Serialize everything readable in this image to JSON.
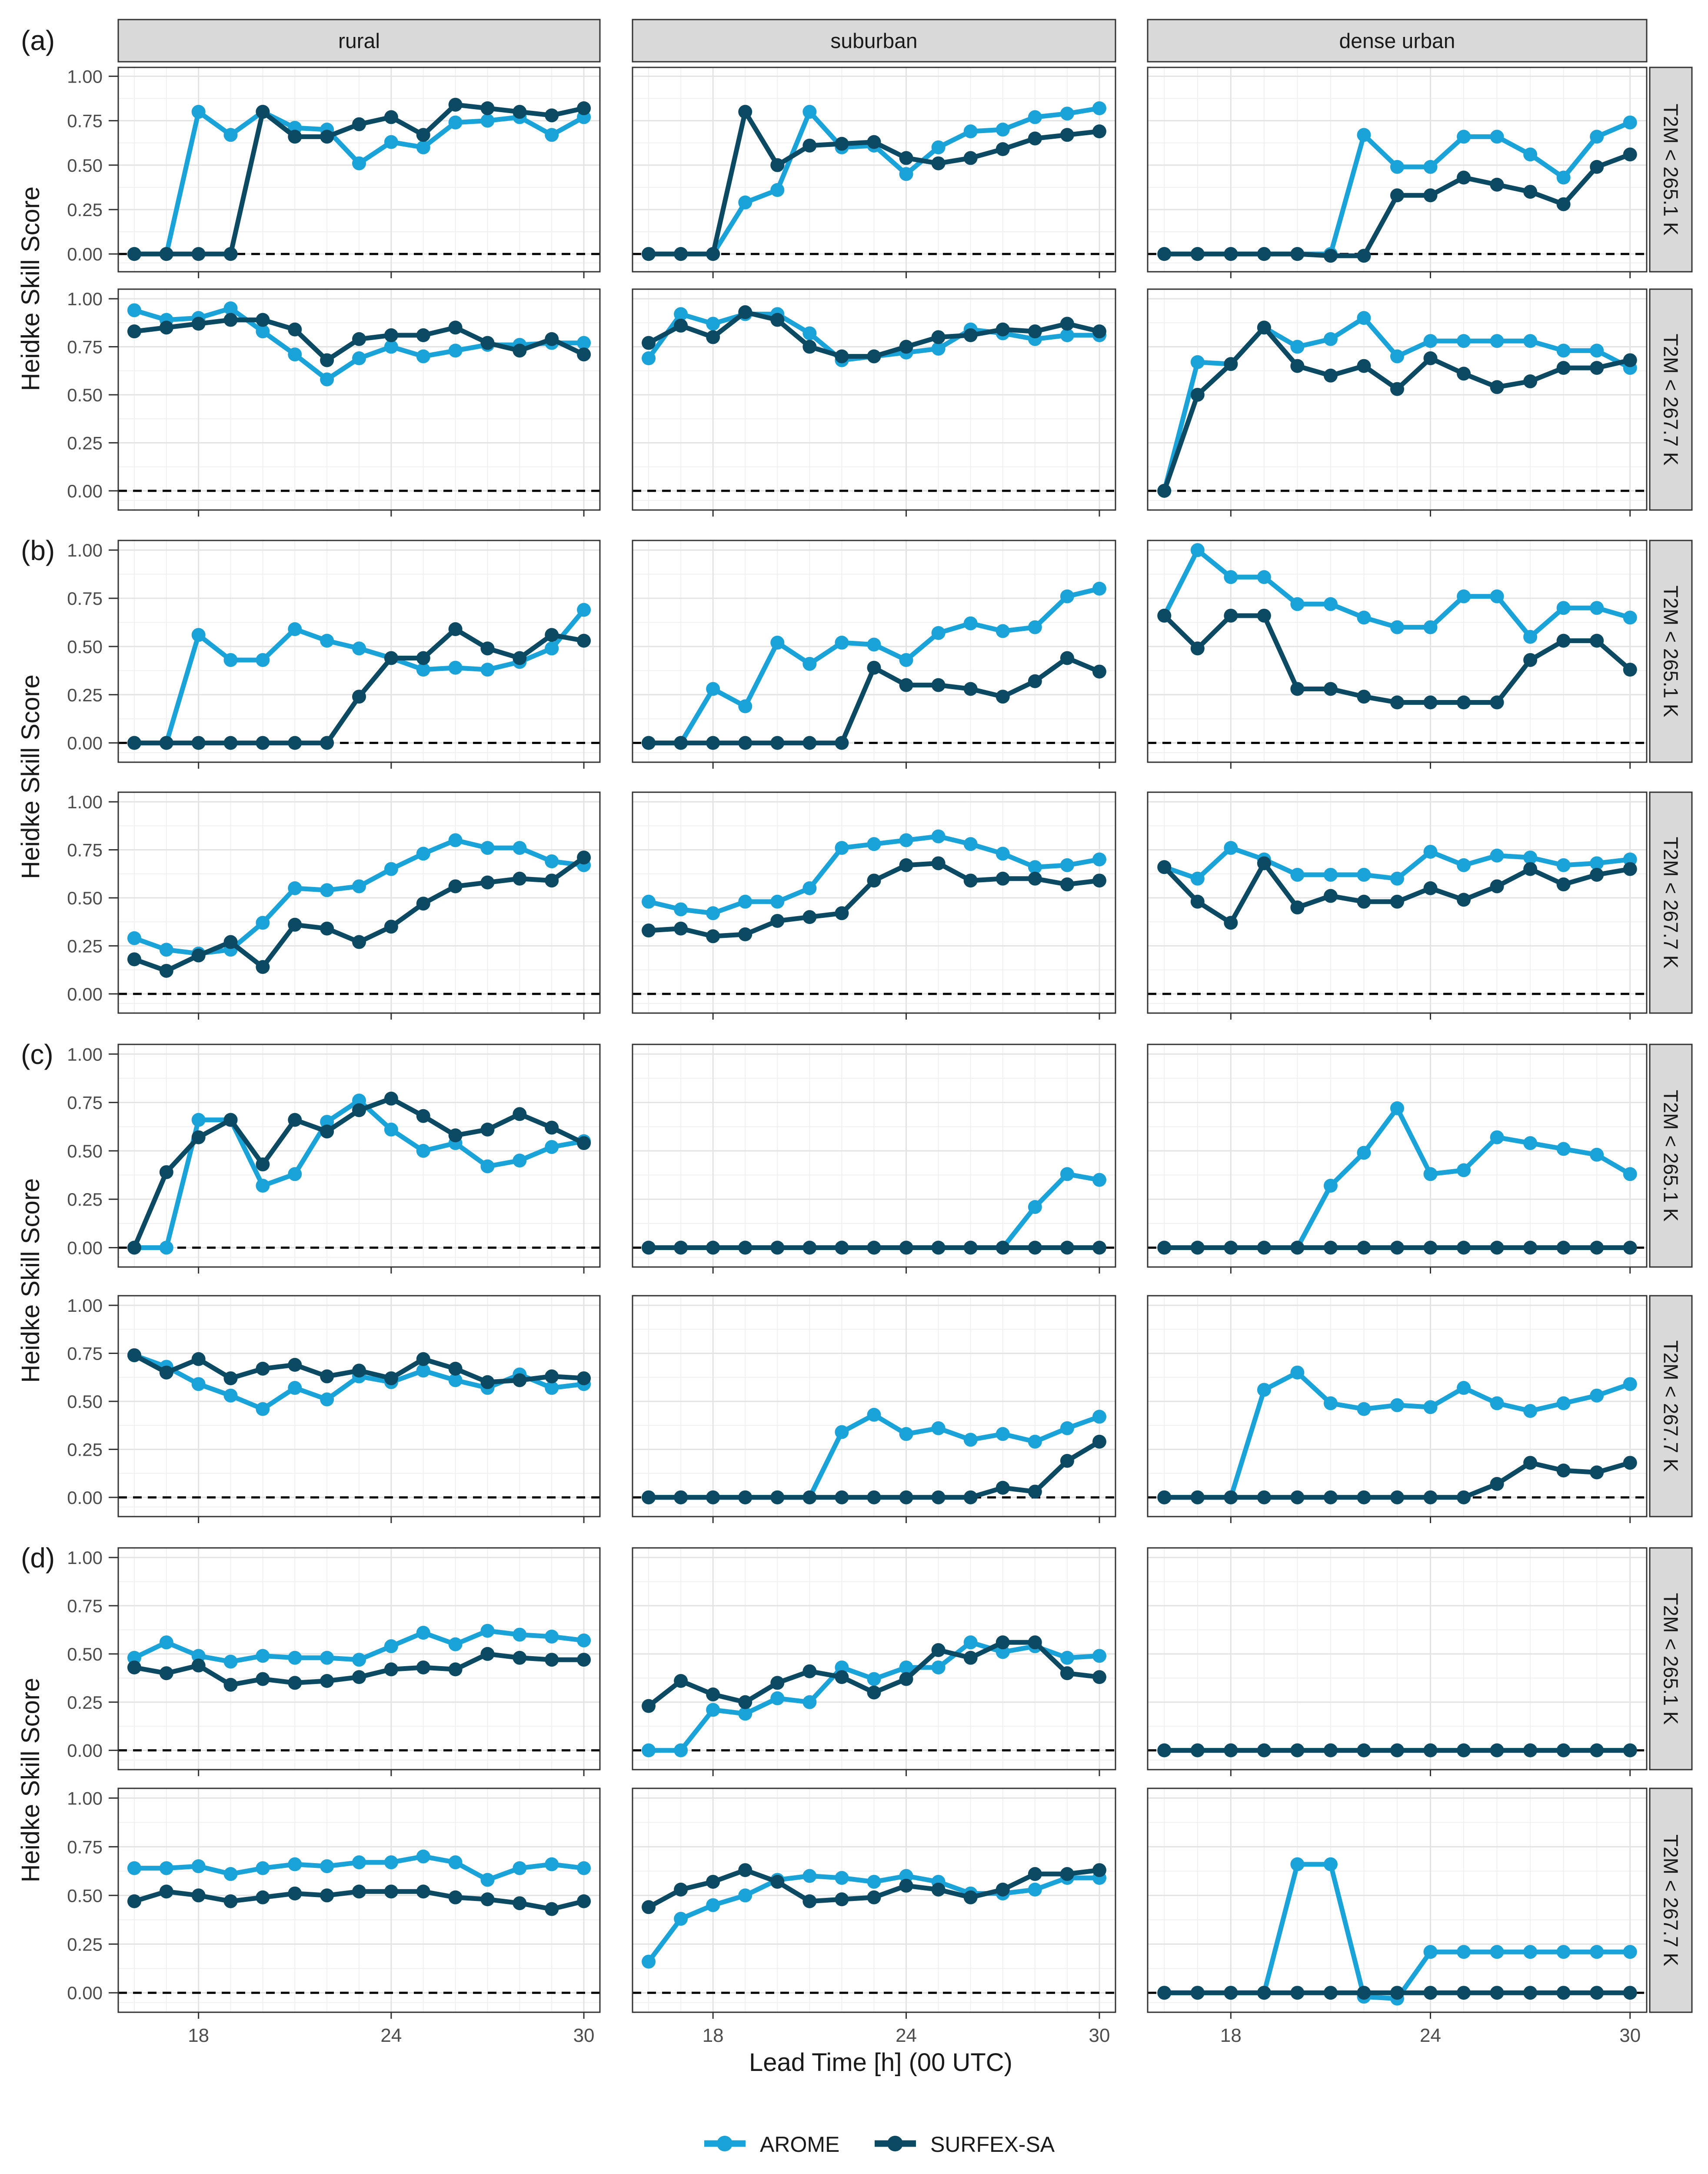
{
  "figure": {
    "ylabel": "Heidke Skill Score",
    "xlabel": "Lead Time [h] (00 UTC)",
    "columns": [
      "rural",
      "suburban",
      "dense urban"
    ],
    "row_strips": [
      "T2M < 265.1 K",
      "T2M < 267.7 K"
    ],
    "group_labels": [
      "(a)",
      "(b)",
      "(c)",
      "(d)"
    ],
    "y_ticks": [
      "0.00",
      "0.25",
      "0.50",
      "0.75",
      "1.00"
    ],
    "x_ticks": [
      "18",
      "24",
      "30"
    ]
  },
  "legend": {
    "items": [
      {
        "name": "AROME",
        "color": "#1aa3d9"
      },
      {
        "name": "SURFEX-SA",
        "color": "#0c4a63"
      }
    ]
  },
  "chart_data": {
    "type": "line",
    "x": [
      16,
      17,
      18,
      19,
      20,
      21,
      22,
      23,
      24,
      25,
      26,
      27,
      28,
      29,
      30
    ],
    "xlim": [
      15.5,
      30.5
    ],
    "ylim": [
      -0.1,
      1.05
    ],
    "y_reference_line": 0,
    "series_names": [
      "AROME",
      "SURFEX-SA"
    ],
    "panels": [
      {
        "group": "(a)",
        "row": "T2M < 265.1 K",
        "column": "rural",
        "AROME": [
          0.0,
          0.0,
          0.8,
          0.67,
          0.8,
          0.71,
          0.7,
          0.51,
          0.63,
          0.6,
          0.74,
          0.75,
          0.77,
          0.67,
          0.77
        ],
        "SURFEX-SA": [
          0.0,
          0.0,
          0.0,
          0.0,
          0.8,
          0.66,
          0.66,
          0.73,
          0.77,
          0.67,
          0.84,
          0.82,
          0.8,
          0.78,
          0.82
        ]
      },
      {
        "group": "(a)",
        "row": "T2M < 265.1 K",
        "column": "suburban",
        "AROME": [
          0.0,
          0.0,
          0.0,
          0.29,
          0.36,
          0.8,
          0.6,
          0.61,
          0.45,
          0.6,
          0.69,
          0.7,
          0.77,
          0.79,
          0.82
        ],
        "SURFEX-SA": [
          0.0,
          0.0,
          0.0,
          0.8,
          0.5,
          0.61,
          0.62,
          0.63,
          0.54,
          0.51,
          0.54,
          0.59,
          0.65,
          0.67,
          0.69
        ]
      },
      {
        "group": "(a)",
        "row": "T2M < 265.1 K",
        "column": "dense urban",
        "AROME": [
          0.0,
          0.0,
          0.0,
          0.0,
          0.0,
          0.0,
          0.67,
          0.49,
          0.49,
          0.66,
          0.66,
          0.56,
          0.43,
          0.66,
          0.74
        ],
        "SURFEX-SA": [
          0.0,
          0.0,
          0.0,
          0.0,
          0.0,
          -0.01,
          -0.01,
          0.33,
          0.33,
          0.43,
          0.39,
          0.35,
          0.28,
          0.49,
          0.56
        ]
      },
      {
        "group": "(a)",
        "row": "T2M < 267.7 K",
        "column": "rural",
        "AROME": [
          0.94,
          0.89,
          0.9,
          0.95,
          0.83,
          0.71,
          0.58,
          0.69,
          0.75,
          0.7,
          0.73,
          0.76,
          0.76,
          0.77,
          0.77
        ],
        "SURFEX-SA": [
          0.83,
          0.85,
          0.87,
          0.89,
          0.89,
          0.84,
          0.68,
          0.79,
          0.81,
          0.81,
          0.85,
          0.77,
          0.73,
          0.79,
          0.71
        ]
      },
      {
        "group": "(a)",
        "row": "T2M < 267.7 K",
        "column": "suburban",
        "AROME": [
          0.69,
          0.92,
          0.87,
          0.92,
          0.92,
          0.82,
          0.68,
          0.7,
          0.72,
          0.74,
          0.84,
          0.82,
          0.79,
          0.81,
          0.81
        ],
        "SURFEX-SA": [
          0.77,
          0.86,
          0.8,
          0.93,
          0.89,
          0.75,
          0.7,
          0.7,
          0.75,
          0.8,
          0.81,
          0.84,
          0.83,
          0.87,
          0.83
        ]
      },
      {
        "group": "(a)",
        "row": "T2M < 267.7 K",
        "column": "dense urban",
        "AROME": [
          0.0,
          0.67,
          0.66,
          0.85,
          0.75,
          0.79,
          0.9,
          0.7,
          0.78,
          0.78,
          0.78,
          0.78,
          0.73,
          0.73,
          0.64
        ],
        "SURFEX-SA": [
          0.0,
          0.5,
          0.66,
          0.85,
          0.65,
          0.6,
          0.65,
          0.53,
          0.69,
          0.61,
          0.54,
          0.57,
          0.64,
          0.64,
          0.68
        ]
      },
      {
        "group": "(b)",
        "row": "T2M < 265.1 K",
        "column": "rural",
        "AROME": [
          0.0,
          0.0,
          0.56,
          0.43,
          0.43,
          0.59,
          0.53,
          0.49,
          0.44,
          0.38,
          0.39,
          0.38,
          0.42,
          0.49,
          0.69
        ],
        "SURFEX-SA": [
          0.0,
          0.0,
          0.0,
          0.0,
          0.0,
          0.0,
          0.0,
          0.24,
          0.44,
          0.44,
          0.59,
          0.49,
          0.44,
          0.56,
          0.53
        ]
      },
      {
        "group": "(b)",
        "row": "T2M < 265.1 K",
        "column": "suburban",
        "AROME": [
          0.0,
          0.0,
          0.28,
          0.19,
          0.52,
          0.41,
          0.52,
          0.51,
          0.43,
          0.57,
          0.62,
          0.58,
          0.6,
          0.76,
          0.8
        ],
        "SURFEX-SA": [
          0.0,
          0.0,
          0.0,
          0.0,
          0.0,
          0.0,
          0.0,
          0.39,
          0.3,
          0.3,
          0.28,
          0.24,
          0.32,
          0.44,
          0.37
        ]
      },
      {
        "group": "(b)",
        "row": "T2M < 265.1 K",
        "column": "dense urban",
        "AROME": [
          0.66,
          1.0,
          0.86,
          0.86,
          0.72,
          0.72,
          0.65,
          0.6,
          0.6,
          0.76,
          0.76,
          0.55,
          0.7,
          0.7,
          0.65
        ],
        "SURFEX-SA": [
          0.66,
          0.49,
          0.66,
          0.66,
          0.28,
          0.28,
          0.24,
          0.21,
          0.21,
          0.21,
          0.21,
          0.43,
          0.53,
          0.53,
          0.38
        ]
      },
      {
        "group": "(b)",
        "row": "T2M < 267.7 K",
        "column": "rural",
        "AROME": [
          0.29,
          0.23,
          0.21,
          0.23,
          0.37,
          0.55,
          0.54,
          0.56,
          0.65,
          0.73,
          0.8,
          0.76,
          0.76,
          0.69,
          0.67
        ],
        "SURFEX-SA": [
          0.18,
          0.12,
          0.2,
          0.27,
          0.14,
          0.36,
          0.34,
          0.27,
          0.35,
          0.47,
          0.56,
          0.58,
          0.6,
          0.59,
          0.71
        ]
      },
      {
        "group": "(b)",
        "row": "T2M < 267.7 K",
        "column": "suburban",
        "AROME": [
          0.48,
          0.44,
          0.42,
          0.48,
          0.48,
          0.55,
          0.76,
          0.78,
          0.8,
          0.82,
          0.78,
          0.73,
          0.66,
          0.67,
          0.7
        ],
        "SURFEX-SA": [
          0.33,
          0.34,
          0.3,
          0.31,
          0.38,
          0.4,
          0.42,
          0.59,
          0.67,
          0.68,
          0.59,
          0.6,
          0.6,
          0.57,
          0.59
        ]
      },
      {
        "group": "(b)",
        "row": "T2M < 267.7 K",
        "column": "dense urban",
        "AROME": [
          0.66,
          0.6,
          0.76,
          0.7,
          0.62,
          0.62,
          0.62,
          0.6,
          0.74,
          0.67,
          0.72,
          0.71,
          0.67,
          0.68,
          0.7
        ],
        "SURFEX-SA": [
          0.66,
          0.48,
          0.37,
          0.68,
          0.45,
          0.51,
          0.48,
          0.48,
          0.55,
          0.49,
          0.56,
          0.65,
          0.57,
          0.62,
          0.65
        ]
      },
      {
        "group": "(c)",
        "row": "T2M < 265.1 K",
        "column": "rural",
        "AROME": [
          0.0,
          0.0,
          0.66,
          0.66,
          0.32,
          0.38,
          0.65,
          0.76,
          0.61,
          0.5,
          0.54,
          0.42,
          0.45,
          0.52,
          0.55
        ],
        "SURFEX-SA": [
          0.0,
          0.39,
          0.57,
          0.66,
          0.43,
          0.66,
          0.6,
          0.71,
          0.77,
          0.68,
          0.58,
          0.61,
          0.69,
          0.62,
          0.54
        ]
      },
      {
        "group": "(c)",
        "row": "T2M < 265.1 K",
        "column": "suburban",
        "AROME": [
          0.0,
          0.0,
          0.0,
          0.0,
          0.0,
          0.0,
          0.0,
          0.0,
          0.0,
          0.0,
          0.0,
          0.0,
          0.21,
          0.38,
          0.35
        ],
        "SURFEX-SA": [
          0.0,
          0.0,
          0.0,
          0.0,
          0.0,
          0.0,
          0.0,
          0.0,
          0.0,
          0.0,
          0.0,
          0.0,
          0.0,
          0.0,
          0.0
        ]
      },
      {
        "group": "(c)",
        "row": "T2M < 265.1 K",
        "column": "dense urban",
        "AROME": [
          0.0,
          0.0,
          0.0,
          0.0,
          0.0,
          0.32,
          0.49,
          0.72,
          0.38,
          0.4,
          0.57,
          0.54,
          0.51,
          0.48,
          0.38
        ],
        "SURFEX-SA": [
          0.0,
          0.0,
          0.0,
          0.0,
          0.0,
          0.0,
          0.0,
          0.0,
          0.0,
          0.0,
          0.0,
          0.0,
          0.0,
          0.0,
          0.0
        ]
      },
      {
        "group": "(c)",
        "row": "T2M < 267.7 K",
        "column": "rural",
        "AROME": [
          0.74,
          0.68,
          0.59,
          0.53,
          0.46,
          0.57,
          0.51,
          0.63,
          0.6,
          0.66,
          0.61,
          0.57,
          0.64,
          0.57,
          0.59
        ],
        "SURFEX-SA": [
          0.74,
          0.65,
          0.72,
          0.62,
          0.67,
          0.69,
          0.63,
          0.66,
          0.62,
          0.72,
          0.67,
          0.6,
          0.61,
          0.63,
          0.62
        ]
      },
      {
        "group": "(c)",
        "row": "T2M < 267.7 K",
        "column": "suburban",
        "AROME": [
          0.0,
          0.0,
          0.0,
          0.0,
          0.0,
          0.0,
          0.34,
          0.43,
          0.33,
          0.36,
          0.3,
          0.33,
          0.29,
          0.36,
          0.42
        ],
        "SURFEX-SA": [
          0.0,
          0.0,
          0.0,
          0.0,
          0.0,
          0.0,
          0.0,
          0.0,
          0.0,
          0.0,
          0.0,
          0.05,
          0.03,
          0.19,
          0.29
        ]
      },
      {
        "group": "(c)",
        "row": "T2M < 267.7 K",
        "column": "dense urban",
        "AROME": [
          0.0,
          0.0,
          0.0,
          0.56,
          0.65,
          0.49,
          0.46,
          0.48,
          0.47,
          0.57,
          0.49,
          0.45,
          0.49,
          0.53,
          0.59
        ],
        "SURFEX-SA": [
          0.0,
          0.0,
          0.0,
          0.0,
          0.0,
          0.0,
          0.0,
          0.0,
          0.0,
          0.0,
          0.07,
          0.18,
          0.14,
          0.13,
          0.18
        ]
      },
      {
        "group": "(d)",
        "row": "T2M < 265.1 K",
        "column": "rural",
        "AROME": [
          0.48,
          0.56,
          0.49,
          0.46,
          0.49,
          0.48,
          0.48,
          0.47,
          0.54,
          0.61,
          0.55,
          0.62,
          0.6,
          0.59,
          0.57
        ],
        "SURFEX-SA": [
          0.43,
          0.4,
          0.44,
          0.34,
          0.37,
          0.35,
          0.36,
          0.38,
          0.42,
          0.43,
          0.42,
          0.5,
          0.48,
          0.47,
          0.47
        ]
      },
      {
        "group": "(d)",
        "row": "T2M < 265.1 K",
        "column": "suburban",
        "AROME": [
          0.0,
          0.0,
          0.21,
          0.19,
          0.27,
          0.25,
          0.43,
          0.37,
          0.43,
          0.43,
          0.56,
          0.51,
          0.54,
          0.48,
          0.49
        ],
        "SURFEX-SA": [
          0.23,
          0.36,
          0.29,
          0.25,
          0.35,
          0.41,
          0.38,
          0.3,
          0.37,
          0.52,
          0.48,
          0.56,
          0.56,
          0.4,
          0.38
        ]
      },
      {
        "group": "(d)",
        "row": "T2M < 265.1 K",
        "column": "dense urban",
        "AROME": [
          0.0,
          0.0,
          0.0,
          0.0,
          0.0,
          0.0,
          0.0,
          0.0,
          0.0,
          0.0,
          0.0,
          0.0,
          0.0,
          0.0,
          0.0
        ],
        "SURFEX-SA": [
          0.0,
          0.0,
          0.0,
          0.0,
          0.0,
          0.0,
          0.0,
          0.0,
          0.0,
          0.0,
          0.0,
          0.0,
          0.0,
          0.0,
          0.0
        ]
      },
      {
        "group": "(d)",
        "row": "T2M < 267.7 K",
        "column": "rural",
        "AROME": [
          0.64,
          0.64,
          0.65,
          0.61,
          0.64,
          0.66,
          0.65,
          0.67,
          0.67,
          0.7,
          0.67,
          0.58,
          0.64,
          0.66,
          0.64
        ],
        "SURFEX-SA": [
          0.47,
          0.52,
          0.5,
          0.47,
          0.49,
          0.51,
          0.5,
          0.52,
          0.52,
          0.52,
          0.49,
          0.48,
          0.46,
          0.43,
          0.47
        ]
      },
      {
        "group": "(d)",
        "row": "T2M < 267.7 K",
        "column": "suburban",
        "AROME": [
          0.16,
          0.38,
          0.45,
          0.5,
          0.58,
          0.6,
          0.59,
          0.57,
          0.6,
          0.57,
          0.51,
          0.51,
          0.53,
          0.59,
          0.59
        ],
        "SURFEX-SA": [
          0.44,
          0.53,
          0.57,
          0.63,
          0.57,
          0.47,
          0.48,
          0.49,
          0.55,
          0.53,
          0.49,
          0.53,
          0.61,
          0.61,
          0.63
        ]
      },
      {
        "group": "(d)",
        "row": "T2M < 267.7 K",
        "column": "dense urban",
        "AROME": [
          0.0,
          0.0,
          0.0,
          0.0,
          0.66,
          0.66,
          -0.02,
          -0.03,
          0.21,
          0.21,
          0.21,
          0.21,
          0.21,
          0.21,
          0.21
        ],
        "SURFEX-SA": [
          0.0,
          0.0,
          0.0,
          0.0,
          0.0,
          0.0,
          0.0,
          0.0,
          0.0,
          0.0,
          0.0,
          0.0,
          0.0,
          0.0,
          0.0
        ]
      }
    ]
  }
}
